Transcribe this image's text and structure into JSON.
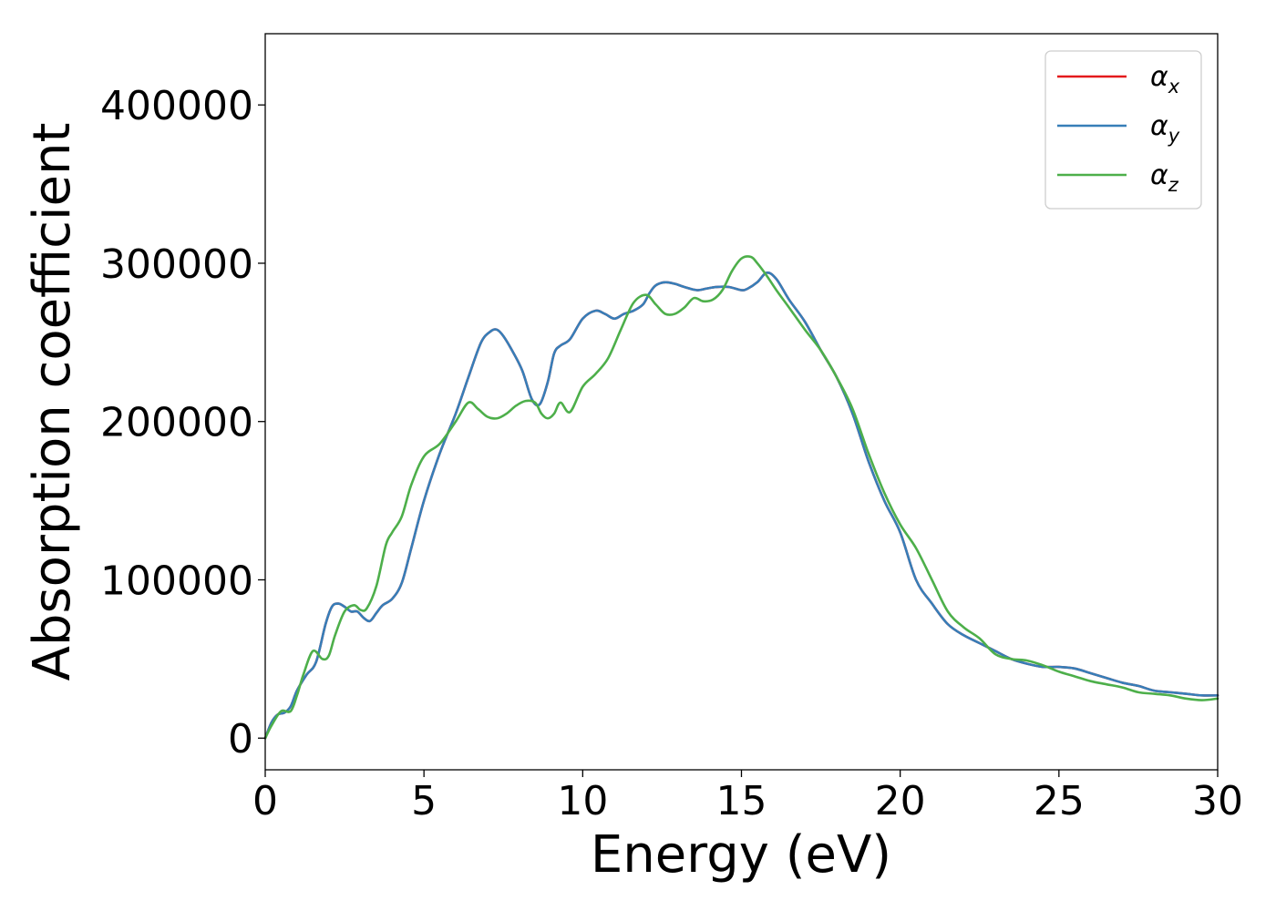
{
  "chart_data": {
    "type": "line",
    "title": "",
    "xlabel": "Energy (eV)",
    "ylabel": "Absorption coefficient",
    "xlim": [
      0,
      30
    ],
    "ylim": [
      -20000,
      445000
    ],
    "xticks": [
      0,
      5,
      10,
      15,
      20,
      25,
      30
    ],
    "yticks": [
      0,
      100000,
      200000,
      300000,
      400000
    ],
    "xtick_labels": [
      "0",
      "5",
      "10",
      "15",
      "20",
      "25",
      "30"
    ],
    "ytick_labels": [
      "0",
      "100000",
      "200000",
      "300000",
      "400000"
    ],
    "grid": false,
    "legend_position": "top-right",
    "series": [
      {
        "name": "α_x",
        "legend_symbol": "α",
        "legend_sub": "x",
        "color": "#e41a1c",
        "x": [
          0,
          0.2,
          0.4,
          0.6,
          0.8,
          1.0,
          1.3,
          1.6,
          1.9,
          2.1,
          2.3,
          2.5,
          2.7,
          2.9,
          3.1,
          3.3,
          3.5,
          3.7,
          4.0,
          4.3,
          4.6,
          5.0,
          5.5,
          6.0,
          6.4,
          6.8,
          7.1,
          7.3,
          7.5,
          7.8,
          8.1,
          8.4,
          8.65,
          8.9,
          9.1,
          9.3,
          9.6,
          10.0,
          10.4,
          10.7,
          11.0,
          11.3,
          11.6,
          11.9,
          12.1,
          12.3,
          12.6,
          12.9,
          13.2,
          13.6,
          13.9,
          14.2,
          14.6,
          15.0,
          15.2,
          15.5,
          15.8,
          16.1,
          16.5,
          17.0,
          17.5,
          18.0,
          18.5,
          19.0,
          19.5,
          20.0,
          20.5,
          21.0,
          21.5,
          22.0,
          22.5,
          23.0,
          23.5,
          24.0,
          24.5,
          25.0,
          25.5,
          26.0,
          26.5,
          27.0,
          27.5,
          28.0,
          28.5,
          29.0,
          29.5,
          30.0
        ],
        "y": [
          0,
          10000,
          15000,
          16000,
          20000,
          30000,
          40000,
          48000,
          72000,
          83000,
          85000,
          83000,
          80000,
          80000,
          76000,
          74000,
          79000,
          84000,
          88000,
          98000,
          120000,
          150000,
          180000,
          205000,
          228000,
          250000,
          257000,
          258000,
          254000,
          244000,
          232000,
          214000,
          211000,
          225000,
          243000,
          248000,
          252000,
          265000,
          270000,
          268000,
          265000,
          268000,
          270000,
          274000,
          281000,
          286000,
          288000,
          287000,
          285000,
          283000,
          284000,
          285000,
          285000,
          283000,
          284000,
          288000,
          294000,
          290000,
          277000,
          263000,
          245000,
          228000,
          205000,
          175000,
          150000,
          130000,
          100000,
          85000,
          72000,
          65000,
          60000,
          55000,
          50000,
          47000,
          45000,
          45000,
          44000,
          41000,
          38000,
          35000,
          33000,
          30000,
          29000,
          28000,
          27000,
          27000
        ]
      },
      {
        "name": "α_y",
        "legend_symbol": "α",
        "legend_sub": "y",
        "color": "#377eb8",
        "x": [
          0,
          0.2,
          0.4,
          0.6,
          0.8,
          1.0,
          1.3,
          1.6,
          1.9,
          2.1,
          2.3,
          2.5,
          2.7,
          2.9,
          3.1,
          3.3,
          3.5,
          3.7,
          4.0,
          4.3,
          4.6,
          5.0,
          5.5,
          6.0,
          6.4,
          6.8,
          7.1,
          7.3,
          7.5,
          7.8,
          8.1,
          8.4,
          8.65,
          8.9,
          9.1,
          9.3,
          9.6,
          10.0,
          10.4,
          10.7,
          11.0,
          11.3,
          11.6,
          11.9,
          12.1,
          12.3,
          12.6,
          12.9,
          13.2,
          13.6,
          13.9,
          14.2,
          14.6,
          15.0,
          15.2,
          15.5,
          15.8,
          16.1,
          16.5,
          17.0,
          17.5,
          18.0,
          18.5,
          19.0,
          19.5,
          20.0,
          20.5,
          21.0,
          21.5,
          22.0,
          22.5,
          23.0,
          23.5,
          24.0,
          24.5,
          25.0,
          25.5,
          26.0,
          26.5,
          27.0,
          27.5,
          28.0,
          28.5,
          29.0,
          29.5,
          30.0
        ],
        "y": [
          0,
          10000,
          15000,
          16000,
          20000,
          30000,
          40000,
          48000,
          72000,
          83000,
          85000,
          83000,
          80000,
          80000,
          76000,
          74000,
          79000,
          84000,
          88000,
          98000,
          120000,
          150000,
          180000,
          205000,
          228000,
          250000,
          257000,
          258000,
          254000,
          244000,
          232000,
          214000,
          211000,
          225000,
          243000,
          248000,
          252000,
          265000,
          270000,
          268000,
          265000,
          268000,
          270000,
          274000,
          281000,
          286000,
          288000,
          287000,
          285000,
          283000,
          284000,
          285000,
          285000,
          283000,
          284000,
          288000,
          294000,
          290000,
          277000,
          263000,
          245000,
          228000,
          205000,
          175000,
          150000,
          130000,
          100000,
          85000,
          72000,
          65000,
          60000,
          55000,
          50000,
          47000,
          45000,
          45000,
          44000,
          41000,
          38000,
          35000,
          33000,
          30000,
          29000,
          28000,
          27000,
          27000
        ]
      },
      {
        "name": "α_z",
        "legend_symbol": "α",
        "legend_sub": "z",
        "color": "#4daf4a",
        "x": [
          0,
          0.2,
          0.5,
          0.8,
          1.0,
          1.2,
          1.5,
          1.8,
          2.0,
          2.2,
          2.5,
          2.8,
          3.0,
          3.2,
          3.5,
          3.8,
          4.0,
          4.3,
          4.6,
          5.0,
          5.5,
          6.0,
          6.4,
          6.7,
          7.0,
          7.3,
          7.6,
          7.9,
          8.2,
          8.5,
          8.7,
          8.9,
          9.1,
          9.3,
          9.6,
          10.0,
          10.4,
          10.8,
          11.2,
          11.6,
          12.0,
          12.3,
          12.6,
          12.9,
          13.2,
          13.5,
          13.8,
          14.1,
          14.4,
          14.7,
          15.0,
          15.3,
          15.5,
          15.8,
          16.1,
          16.5,
          17.0,
          17.5,
          18.0,
          18.5,
          19.0,
          19.5,
          20.0,
          20.5,
          21.0,
          21.5,
          22.0,
          22.5,
          23.0,
          23.5,
          24.0,
          24.5,
          25.0,
          25.5,
          26.0,
          26.5,
          27.0,
          27.5,
          28.0,
          28.5,
          29.0,
          29.5,
          30.0
        ],
        "y": [
          0,
          8000,
          17000,
          17000,
          27000,
          40000,
          55000,
          50000,
          52000,
          65000,
          80000,
          84000,
          81000,
          82000,
          96000,
          122000,
          130000,
          140000,
          160000,
          178000,
          186000,
          200000,
          212000,
          208000,
          203000,
          202000,
          205000,
          210000,
          213000,
          212000,
          205000,
          202000,
          205000,
          212000,
          206000,
          222000,
          230000,
          240000,
          258000,
          275000,
          280000,
          274000,
          268000,
          268000,
          272000,
          278000,
          276000,
          277000,
          283000,
          295000,
          303000,
          304000,
          300000,
          292000,
          283000,
          272000,
          258000,
          245000,
          228000,
          208000,
          180000,
          155000,
          135000,
          120000,
          100000,
          80000,
          70000,
          63000,
          53000,
          50000,
          49000,
          46000,
          42000,
          39000,
          36000,
          34000,
          32000,
          29000,
          28000,
          27000,
          25000,
          24000,
          25000
        ]
      }
    ]
  }
}
